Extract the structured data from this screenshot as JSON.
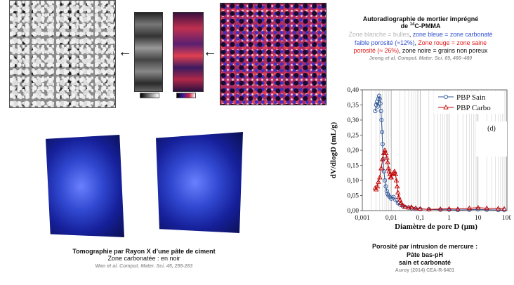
{
  "right_panel": {
    "title_line1": "Autoradiographie de mortier imprégné",
    "title_line2_prefix": "de ",
    "title_line2_sup": "14",
    "title_line2_suffix": "C-PMMA",
    "desc_white": "Zone blanche = bulles",
    "desc_sep1": ", ",
    "desc_blue": "zone bleue = zone carbonaté",
    "desc_blue2": "faible porosité (≈12%)",
    "desc_sep2": ", ",
    "desc_red": "Zone rouge = zone saine",
    "desc_red2": "porosité (≈ 26%)",
    "desc_black": ", zone noire = grains non poreux",
    "ref_author": "Jeong",
    "ref_rest": " et al. Comput. Mater. Sci. 69, 466–480"
  },
  "bottom_left": {
    "title": "Tomographie par Rayon X d’une pâte de ciment",
    "line2": "Zone carbonatée : en noir",
    "ref_author": "Wan",
    "ref_rest": " et al. Comput. Mater. Sci. 45, 255-263"
  },
  "bottom_right": {
    "line1": "Porosité par intrusion de mercure :",
    "line2": "Pâte  bas-pH",
    "line3": "sain et carbonaté",
    "ref": "Auroy (2014) CEA-R-6401"
  },
  "chart_data": {
    "type": "line",
    "xscale": "log",
    "xlim": [
      0.001,
      100
    ],
    "ylim": [
      0,
      0.4
    ],
    "xlabel": "Diamètre de pore D (µm)",
    "ylabel": "dV/dlogD (mL/g)",
    "annotation": "(d)",
    "x_ticks": [
      "0,001",
      "0,01",
      "0,1",
      "1",
      "10",
      "100"
    ],
    "y_ticks": [
      "0,00",
      "0,05",
      "0,10",
      "0,15",
      "0,20",
      "0,25",
      "0,30",
      "0,35",
      "0,40"
    ],
    "legend_position": "top-right",
    "series": [
      {
        "name": "PBP Sain",
        "color": "#2f5597",
        "marker": "circle",
        "x": [
          0.0028,
          0.003,
          0.0032,
          0.0034,
          0.0036,
          0.0038,
          0.004,
          0.0042,
          0.0044,
          0.0046,
          0.0048,
          0.005,
          0.0053,
          0.0056,
          0.006,
          0.0065,
          0.007,
          0.0075,
          0.008,
          0.009,
          0.01,
          0.012,
          0.014,
          0.017,
          0.02,
          0.025,
          0.03,
          0.04,
          0.05,
          0.07,
          0.1,
          0.2,
          0.5,
          1,
          2,
          5,
          10,
          20,
          50,
          80
        ],
        "values": [
          0.33,
          0.35,
          0.36,
          0.345,
          0.37,
          0.38,
          0.37,
          0.355,
          0.33,
          0.3,
          0.26,
          0.22,
          0.17,
          0.13,
          0.1,
          0.08,
          0.065,
          0.055,
          0.05,
          0.045,
          0.04,
          0.045,
          0.035,
          0.025,
          0.02,
          0.015,
          0.012,
          0.01,
          0.008,
          0.006,
          0.005,
          0.004,
          0.003,
          0.003,
          0.002,
          0.003,
          0.004,
          0.003,
          0.002,
          0.002
        ]
      },
      {
        "name": "PBP Carbo",
        "color": "#c00000",
        "marker": "triangle",
        "x": [
          0.0028,
          0.003,
          0.0033,
          0.0036,
          0.004,
          0.0045,
          0.005,
          0.0055,
          0.006,
          0.0065,
          0.007,
          0.0075,
          0.008,
          0.0085,
          0.009,
          0.0095,
          0.01,
          0.011,
          0.012,
          0.013,
          0.014,
          0.015,
          0.016,
          0.017,
          0.018,
          0.02,
          0.022,
          0.025,
          0.03,
          0.04,
          0.05,
          0.07,
          0.1,
          0.2,
          0.5,
          1,
          2,
          5,
          10,
          20,
          50,
          80
        ],
        "values": [
          0.075,
          0.07,
          0.08,
          0.095,
          0.11,
          0.14,
          0.17,
          0.19,
          0.2,
          0.19,
          0.175,
          0.16,
          0.14,
          0.13,
          0.12,
          0.11,
          0.11,
          0.12,
          0.125,
          0.13,
          0.12,
          0.1,
          0.08,
          0.06,
          0.045,
          0.035,
          0.025,
          0.018,
          0.012,
          0.01,
          0.012,
          0.008,
          0.006,
          0.004,
          0.005,
          0.006,
          0.005,
          0.008,
          0.01,
          0.008,
          0.007,
          0.006
        ]
      }
    ]
  }
}
